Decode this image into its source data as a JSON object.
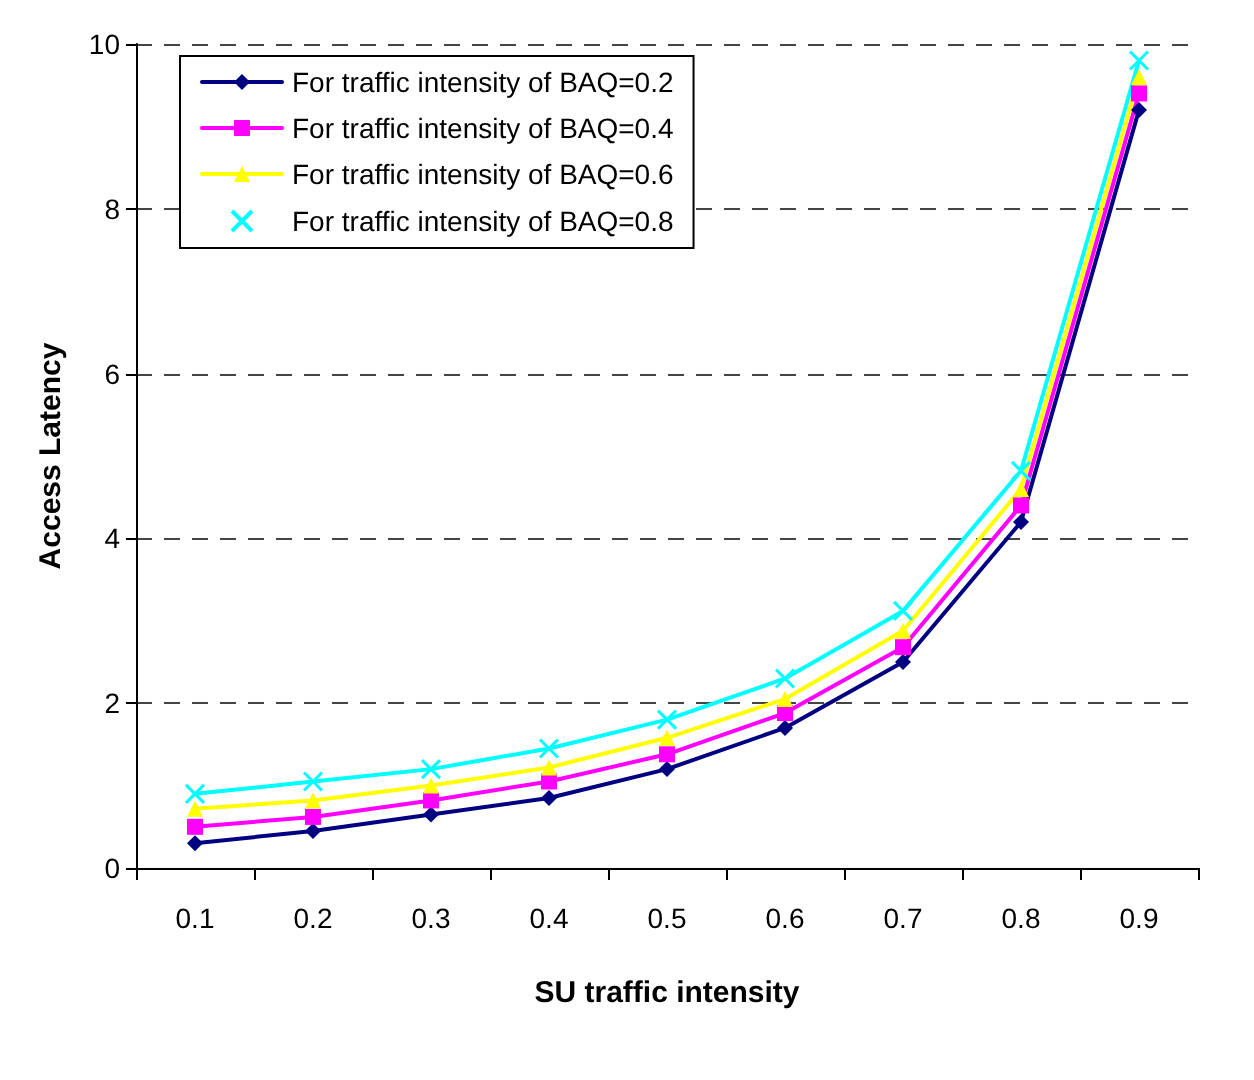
{
  "chart_data": {
    "type": "line",
    "xlabel": "SU traffic intensity",
    "ylabel": "Access Latency",
    "categories": [
      "0.1",
      "0.2",
      "0.3",
      "0.4",
      "0.5",
      "0.6",
      "0.7",
      "0.8",
      "0.9"
    ],
    "ylim": [
      0,
      10
    ],
    "yticks": [
      0,
      2,
      4,
      6,
      8,
      10
    ],
    "grid": "y",
    "legend": "top left",
    "series": [
      {
        "name": "For traffic intensity of BAQ=0.2",
        "color": "#000080",
        "marker": "diamond",
        "values": [
          0.3,
          0.45,
          0.65,
          0.85,
          1.2,
          1.7,
          2.5,
          4.2,
          9.2
        ]
      },
      {
        "name": "For traffic intensity of BAQ=0.4",
        "color": "#ff00ff",
        "marker": "square",
        "values": [
          0.5,
          0.62,
          0.82,
          1.05,
          1.38,
          1.88,
          2.68,
          4.4,
          9.4
        ]
      },
      {
        "name": "For traffic intensity of BAQ=0.6",
        "color": "#ffff00",
        "marker": "triangle",
        "values": [
          0.72,
          0.82,
          1.0,
          1.22,
          1.58,
          2.05,
          2.88,
          4.6,
          9.6
        ]
      },
      {
        "name": "For traffic intensity of BAQ=0.8",
        "color": "#00ffff",
        "marker": "cross",
        "values": [
          0.9,
          1.05,
          1.2,
          1.45,
          1.8,
          2.3,
          3.12,
          4.82,
          9.8
        ]
      }
    ]
  }
}
